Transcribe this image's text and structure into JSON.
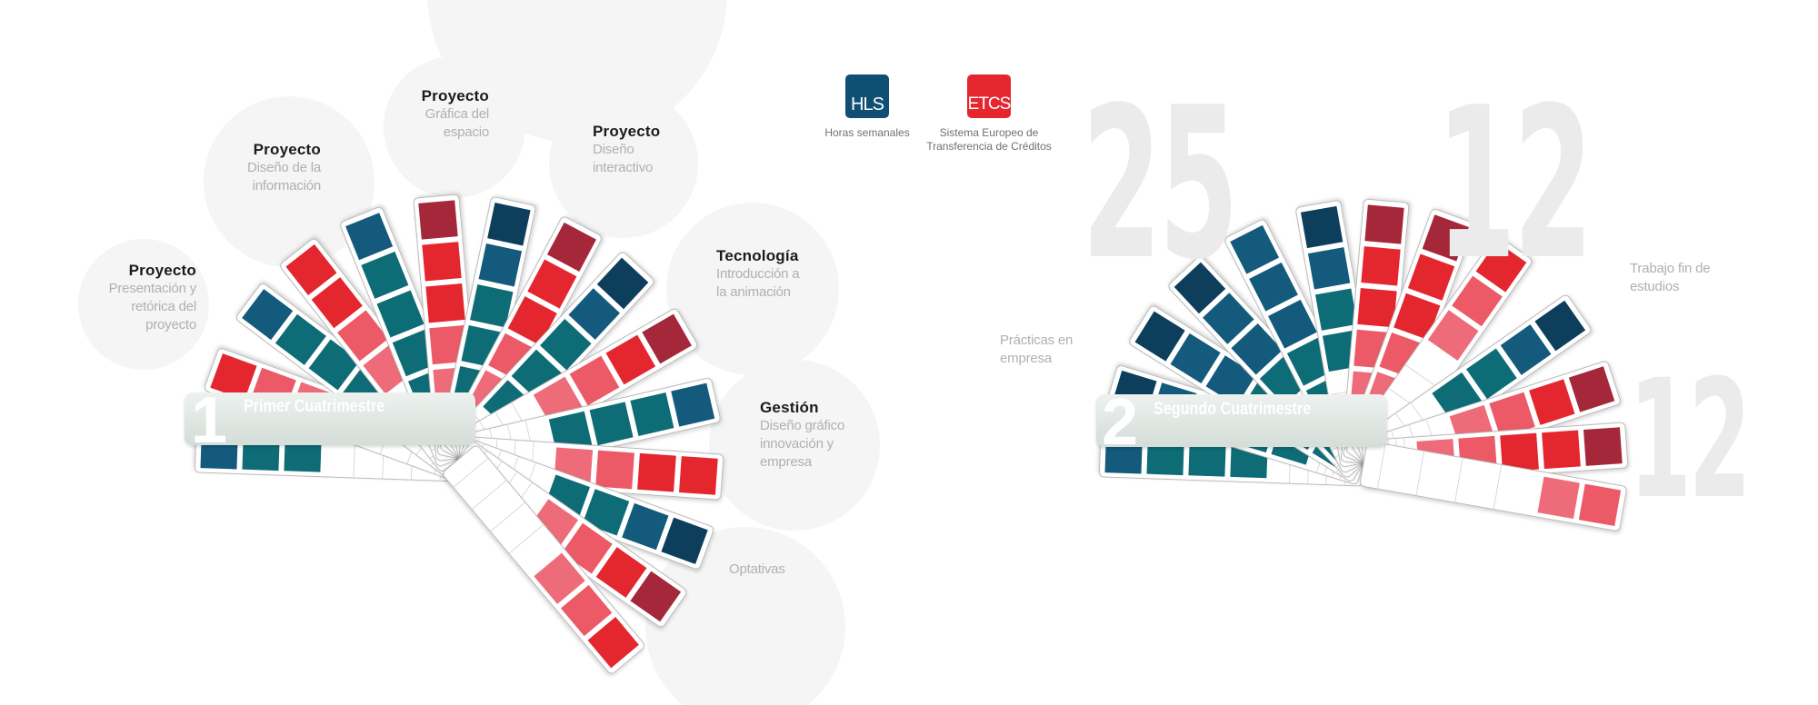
{
  "legend": {
    "hls": {
      "code": "HLS",
      "desc": "Horas semanales",
      "color": "#0f4f73"
    },
    "etcs": {
      "code": "ETCS",
      "desc1": "Sistema Europeo de",
      "desc2": "Transferencia de Créditos",
      "color": "#e4262f"
    }
  },
  "semester1": {
    "number": "1",
    "title": "Primer Cuatrimestre",
    "subjects": [
      {
        "title": "Proyecto",
        "lines": [
          "Presentación y",
          "retórica del",
          "proyecto"
        ]
      },
      {
        "title": "Proyecto",
        "lines": [
          "Diseño de la",
          "información"
        ]
      },
      {
        "title": "Proyecto",
        "lines": [
          "Gráfica del",
          "espacio"
        ]
      },
      {
        "title": "Proyecto",
        "lines": [
          "Diseño",
          "interactivo"
        ]
      },
      {
        "title": "Tecnología",
        "lines": [
          "Introducción a",
          "la animación"
        ]
      },
      {
        "title": "Gestión",
        "lines": [
          "Diseño gráfico",
          "innovación y",
          "empresa"
        ]
      },
      {
        "title": "",
        "lines": [
          "Optativas"
        ]
      }
    ]
  },
  "semester2": {
    "number": "2",
    "title": "Segundo Cuatrimestre",
    "labels": {
      "practicas": [
        "Prácticas en",
        "empresa"
      ],
      "trabajo": [
        "Trabajo fin de",
        "estudios"
      ]
    },
    "big_numbers": {
      "hls": "25",
      "etcs_top": "12",
      "etcs_bottom": "12"
    }
  },
  "palette": {
    "teal": "#0e6c76",
    "blue": "#135a7c",
    "navy": "#0d3e5b",
    "red": "#e4262f",
    "pink": "#ec5a67",
    "salmon": "#ee6b79",
    "dark_red": "#a5273a"
  }
}
